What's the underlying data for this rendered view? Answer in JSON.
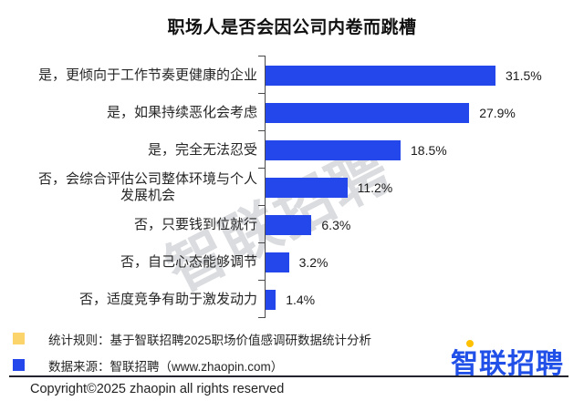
{
  "title": "职场人是否会因公司内卷而跳槽",
  "chart_data": {
    "type": "bar",
    "orientation": "horizontal",
    "title": "职场人是否会因公司内卷而跳槽",
    "categories": [
      "是，更倾向于工作节奏更健康的企业",
      "是，如果持续恶化会考虑",
      "是，完全无法忍受",
      "否，会综合评估公司整体环境与个人发展机会",
      "否，只要钱到位就行",
      "否，自己心态能够调节",
      "否，适度竞争有助于激发动力"
    ],
    "values": [
      31.5,
      27.9,
      18.5,
      11.2,
      6.3,
      3.2,
      1.4
    ],
    "value_labels": [
      "31.5%",
      "27.9%",
      "18.5%",
      "11.2%",
      "6.3%",
      "3.2%",
      "1.4%"
    ],
    "unit": "%",
    "bar_color": "#2447EC",
    "axis_color": "#4a4a4a",
    "xlim": [
      0,
      35
    ],
    "grid": false,
    "legend": false,
    "value_label_position": "end-of-bar"
  },
  "watermark": "智联招聘",
  "footnotes": [
    {
      "marker_color": "#FBD46B",
      "text": "统计规则：基于智联招聘2025职场价值感调研数据统计分析"
    },
    {
      "marker_color": "#2447EC",
      "text": "数据来源：智联招聘（www.zhaopin.com）"
    }
  ],
  "logo": {
    "text": "智联招聘"
  },
  "copyright": "Copyright©2025 zhaopin all rights reserved"
}
